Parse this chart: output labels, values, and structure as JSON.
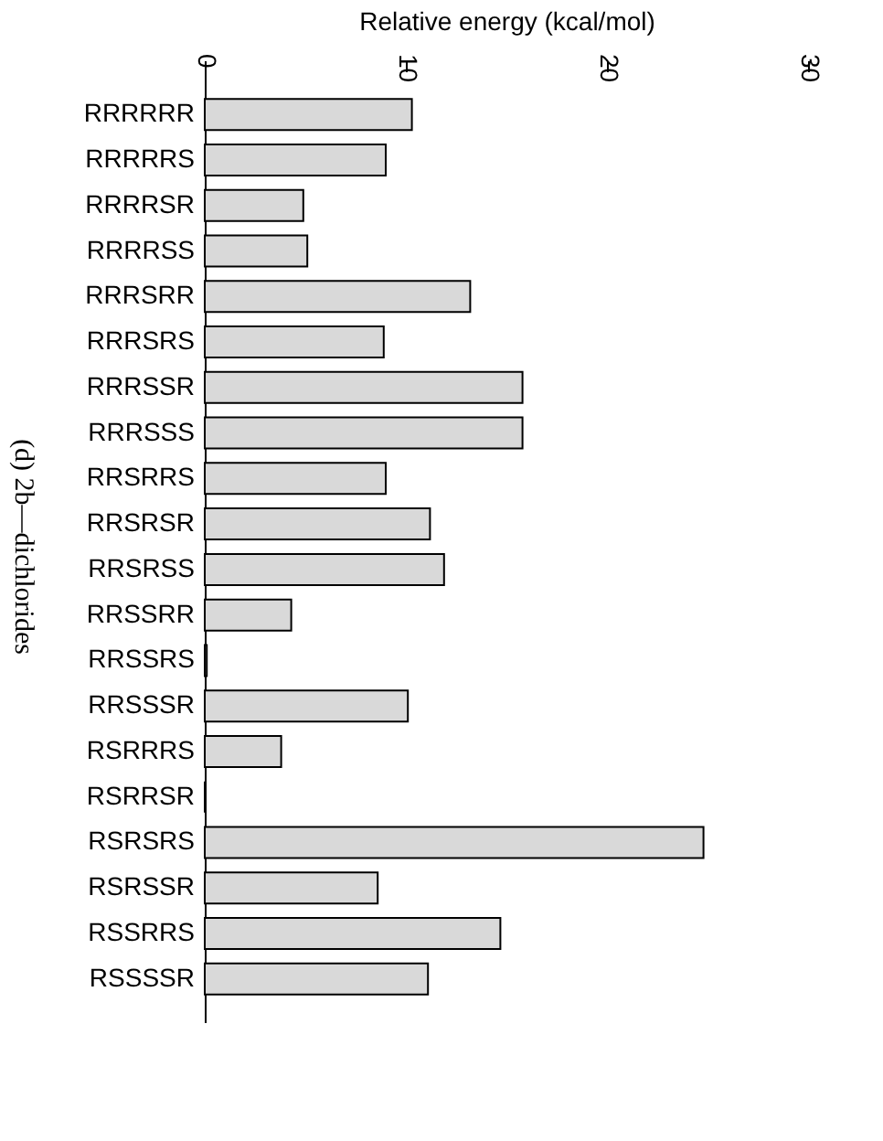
{
  "chart_data": {
    "type": "bar",
    "orientation": "horizontal",
    "title": "(d) 2b—dichlorides",
    "xlabel": "Relative energy (kcal/mol)",
    "categories": [
      "RRRRRR",
      "RRRRRS",
      "RRRRSR",
      "RRRRSS",
      "RRRSRR",
      "RRRSRS",
      "RRRSSR",
      "RRRSSS",
      "RRSRRS",
      "RRSRSR",
      "RRSRSS",
      "RRSSRR",
      "RRSSRS",
      "RRSSSR",
      "RSRRRS",
      "RSRRSR",
      "RSRSRS",
      "RSRSSR",
      "RSSRRS",
      "RSSSSR"
    ],
    "values": [
      10.3,
      9.0,
      4.9,
      5.1,
      13.2,
      8.9,
      15.8,
      15.8,
      9.0,
      11.2,
      11.9,
      4.3,
      0.1,
      10.1,
      3.8,
      0,
      24.8,
      8.6,
      14.7,
      11.1
    ],
    "color": "#d9d9d9",
    "xlim": [
      0,
      30
    ],
    "xticks": [
      0,
      10,
      20,
      30
    ],
    "grid": false
  }
}
